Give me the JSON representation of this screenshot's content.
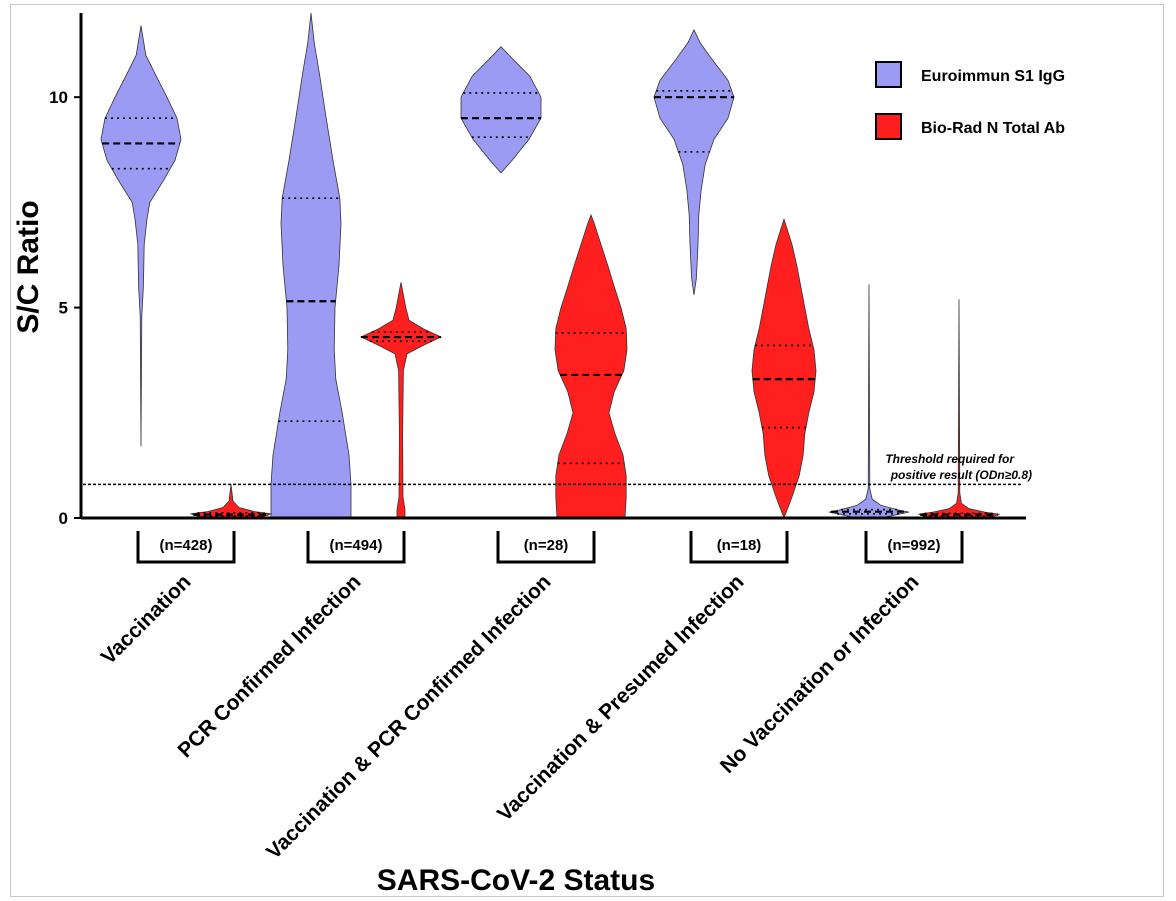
{
  "chart_data": {
    "type": "violin",
    "ylabel": "S/C Ratio",
    "xlabel": "SARS-CoV-2 Status",
    "ylim": [
      0,
      12
    ],
    "yticks": [
      0,
      5,
      10
    ],
    "categories": [
      "Vaccination",
      "PCR Confirmed Infection",
      "Vaccination & PCR Confirmed Infection",
      "Vaccination & Presumed Infection",
      "No Vaccination or Infection"
    ],
    "group_n": [
      "(n=428)",
      "(n=494)",
      "(n=28)",
      "(n=18)",
      "(n=992)"
    ],
    "threshold": {
      "value": 0.8,
      "label_line1": "Threshold required for",
      "label_line2": "positive result (ODn≥0.8)"
    },
    "legend_position": "top-right",
    "series": [
      {
        "name": "Euroimmun S1 IgG",
        "color": "#9b9bf3",
        "violins": [
          {
            "min": 1.7,
            "max": 11.7,
            "median": 8.9,
            "q1": 8.3,
            "q3": 9.5,
            "profile": [
              [
                1.7,
                0
              ],
              [
                4.8,
                0.02
              ],
              [
                5.5,
                0.06
              ],
              [
                6.5,
                0.08
              ],
              [
                7.1,
                0.15
              ],
              [
                7.5,
                0.22
              ],
              [
                8.0,
                0.55
              ],
              [
                8.5,
                0.85
              ],
              [
                9.0,
                1.0
              ],
              [
                9.5,
                0.9
              ],
              [
                10.0,
                0.65
              ],
              [
                10.5,
                0.38
              ],
              [
                11.0,
                0.12
              ],
              [
                11.7,
                0
              ]
            ]
          },
          {
            "min": 0,
            "max": 12.0,
            "median": 5.15,
            "q1": 2.3,
            "q3": 7.6,
            "profile": [
              [
                0,
                1.0
              ],
              [
                0.8,
                1.0
              ],
              [
                1.5,
                0.95
              ],
              [
                2.5,
                0.78
              ],
              [
                3.3,
                0.62
              ],
              [
                4.0,
                0.58
              ],
              [
                5.0,
                0.6
              ],
              [
                6.0,
                0.7
              ],
              [
                7.0,
                0.75
              ],
              [
                7.6,
                0.72
              ],
              [
                8.5,
                0.55
              ],
              [
                9.5,
                0.38
              ],
              [
                10.5,
                0.22
              ],
              [
                11.3,
                0.08
              ],
              [
                12.0,
                0
              ]
            ]
          },
          {
            "min": 8.2,
            "max": 11.2,
            "median": 9.5,
            "q1": 9.05,
            "q3": 10.1,
            "profile": [
              [
                8.2,
                0
              ],
              [
                8.5,
                0.28
              ],
              [
                9.0,
                0.7
              ],
              [
                9.5,
                1.0
              ],
              [
                10.0,
                1.0
              ],
              [
                10.5,
                0.72
              ],
              [
                10.9,
                0.3
              ],
              [
                11.2,
                0
              ]
            ]
          },
          {
            "min": 5.3,
            "max": 11.6,
            "median": 10.0,
            "q1": 8.7,
            "q3": 10.15,
            "profile": [
              [
                5.3,
                0
              ],
              [
                5.7,
                0.06
              ],
              [
                6.5,
                0.1
              ],
              [
                7.2,
                0.12
              ],
              [
                7.8,
                0.18
              ],
              [
                8.4,
                0.28
              ],
              [
                9.0,
                0.5
              ],
              [
                9.5,
                0.85
              ],
              [
                10.0,
                1.0
              ],
              [
                10.4,
                0.85
              ],
              [
                10.9,
                0.45
              ],
              [
                11.3,
                0.15
              ],
              [
                11.6,
                0
              ]
            ]
          },
          {
            "min": 0,
            "max": 5.55,
            "median": 0.15,
            "q1": 0.1,
            "q3": 0.2,
            "profile": [
              [
                0.0,
                0.3
              ],
              [
                0.08,
                0.7
              ],
              [
                0.14,
                1.0
              ],
              [
                0.2,
                0.7
              ],
              [
                0.3,
                0.3
              ],
              [
                0.45,
                0.08
              ],
              [
                0.7,
                0.02
              ],
              [
                5.55,
                0
              ]
            ]
          }
        ]
      },
      {
        "name": "Bio-Rad N Total Ab",
        "color": "#ff1f1f",
        "violins": [
          {
            "min": 0,
            "max": 0.8,
            "median": 0.08,
            "q1": 0.05,
            "q3": 0.12,
            "profile": [
              [
                0.0,
                0.5
              ],
              [
                0.06,
                0.9
              ],
              [
                0.1,
                1.0
              ],
              [
                0.15,
                0.6
              ],
              [
                0.25,
                0.2
              ],
              [
                0.4,
                0.05
              ],
              [
                0.8,
                0
              ]
            ]
          },
          {
            "min": 0,
            "max": 5.6,
            "median": 4.3,
            "q1": 4.2,
            "q3": 4.42,
            "profile": [
              [
                0,
                0.1
              ],
              [
                0.2,
                0.1
              ],
              [
                0.5,
                0.05
              ],
              [
                2.0,
                0.04
              ],
              [
                3.5,
                0.06
              ],
              [
                3.9,
                0.15
              ],
              [
                4.1,
                0.55
              ],
              [
                4.3,
                1.0
              ],
              [
                4.5,
                0.55
              ],
              [
                4.7,
                0.2
              ],
              [
                5.0,
                0.12
              ],
              [
                5.3,
                0.06
              ],
              [
                5.6,
                0
              ]
            ]
          },
          {
            "min": 0,
            "max": 7.2,
            "median": 3.4,
            "q1": 1.3,
            "q3": 4.4,
            "profile": [
              [
                0,
                0.85
              ],
              [
                0.5,
                0.88
              ],
              [
                1.0,
                0.88
              ],
              [
                1.5,
                0.8
              ],
              [
                2.0,
                0.6
              ],
              [
                2.5,
                0.45
              ],
              [
                3.0,
                0.58
              ],
              [
                3.5,
                0.82
              ],
              [
                4.0,
                0.9
              ],
              [
                4.5,
                0.88
              ],
              [
                5.0,
                0.75
              ],
              [
                5.5,
                0.58
              ],
              [
                6.0,
                0.42
              ],
              [
                6.5,
                0.25
              ],
              [
                7.0,
                0.08
              ],
              [
                7.2,
                0
              ]
            ]
          },
          {
            "min": 0,
            "max": 7.1,
            "median": 3.3,
            "q1": 2.15,
            "q3": 4.1,
            "profile": [
              [
                0,
                0
              ],
              [
                0.5,
                0.2
              ],
              [
                1.0,
                0.38
              ],
              [
                1.5,
                0.48
              ],
              [
                2.0,
                0.52
              ],
              [
                2.5,
                0.62
              ],
              [
                3.0,
                0.75
              ],
              [
                3.5,
                0.8
              ],
              [
                4.0,
                0.75
              ],
              [
                4.5,
                0.62
              ],
              [
                5.0,
                0.52
              ],
              [
                5.5,
                0.42
              ],
              [
                6.0,
                0.32
              ],
              [
                6.5,
                0.2
              ],
              [
                7.1,
                0
              ]
            ]
          },
          {
            "min": 0,
            "max": 5.2,
            "median": 0.08,
            "q1": 0.05,
            "q3": 0.11,
            "profile": [
              [
                0.0,
                0.5
              ],
              [
                0.05,
                0.9
              ],
              [
                0.09,
                1.0
              ],
              [
                0.14,
                0.65
              ],
              [
                0.22,
                0.25
              ],
              [
                0.35,
                0.06
              ],
              [
                0.6,
                0.02
              ],
              [
                5.2,
                0
              ]
            ]
          }
        ]
      }
    ]
  }
}
